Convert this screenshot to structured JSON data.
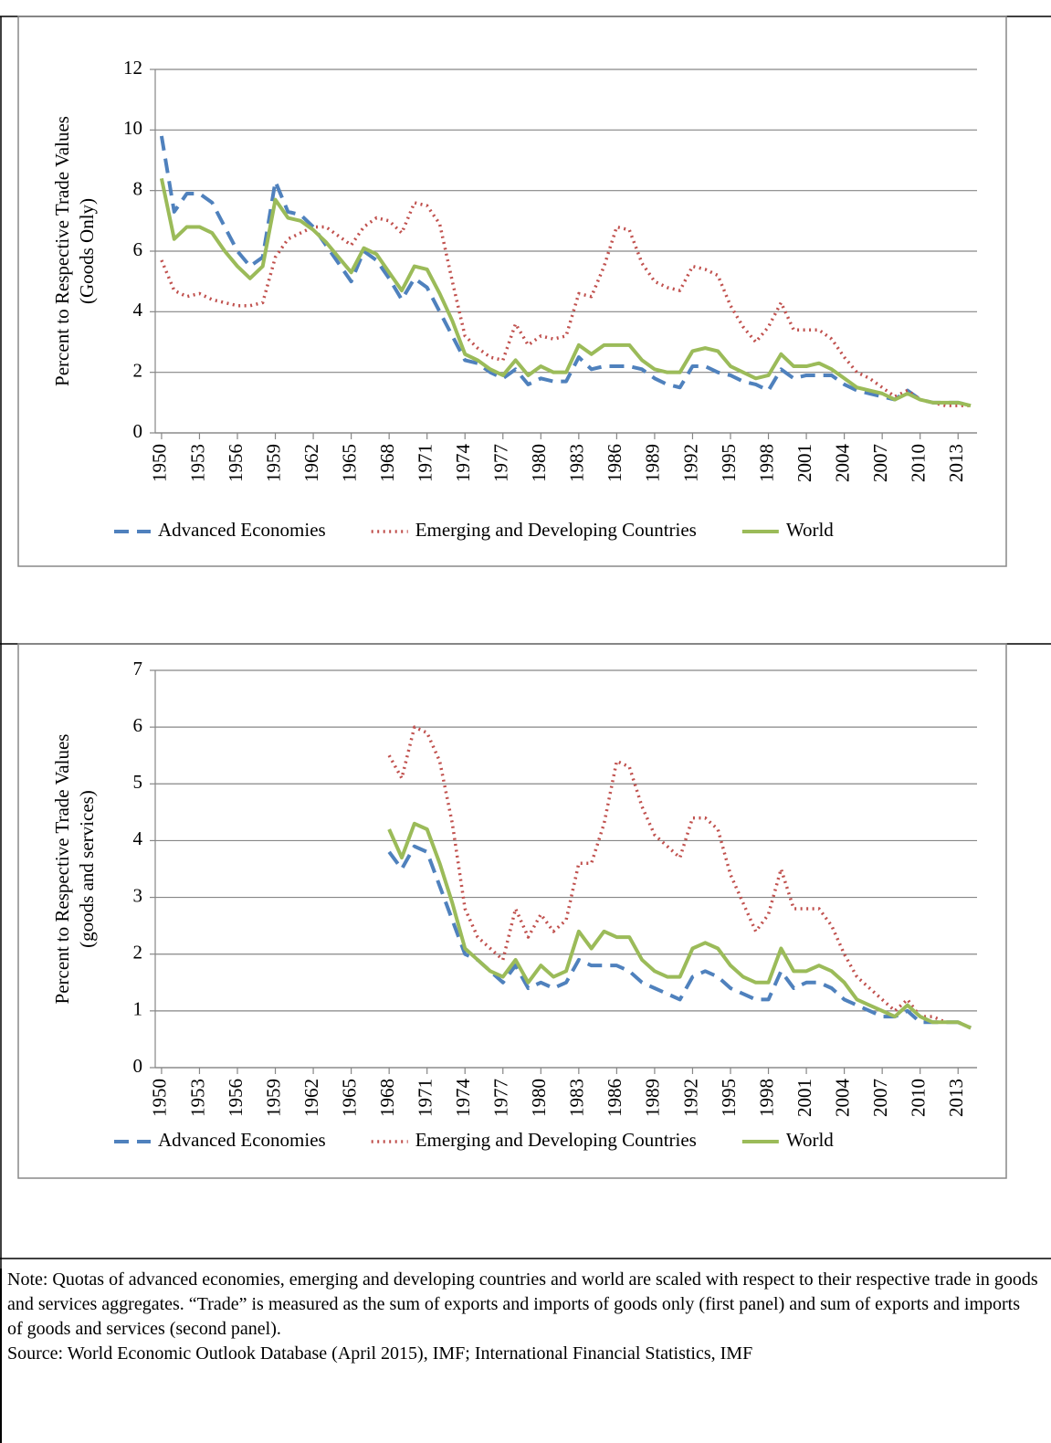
{
  "chart_data": [
    {
      "type": "line",
      "ylabel": [
        "Percent to Respective Trade Values",
        "(Goods Only)"
      ],
      "x": [
        1950,
        1951,
        1952,
        1953,
        1954,
        1955,
        1956,
        1957,
        1958,
        1959,
        1960,
        1961,
        1962,
        1963,
        1964,
        1965,
        1966,
        1967,
        1968,
        1969,
        1970,
        1971,
        1972,
        1973,
        1974,
        1975,
        1976,
        1977,
        1978,
        1979,
        1980,
        1981,
        1982,
        1983,
        1984,
        1985,
        1986,
        1987,
        1988,
        1989,
        1990,
        1991,
        1992,
        1993,
        1994,
        1995,
        1996,
        1997,
        1998,
        1999,
        2000,
        2001,
        2002,
        2003,
        2004,
        2005,
        2006,
        2007,
        2008,
        2009,
        2010,
        2011,
        2012,
        2013,
        2014
      ],
      "xlim": [
        1949.5,
        2014.5
      ],
      "xticks": [
        1950,
        1953,
        1956,
        1959,
        1962,
        1965,
        1968,
        1971,
        1974,
        1977,
        1980,
        1983,
        1986,
        1989,
        1992,
        1995,
        1998,
        2001,
        2004,
        2007,
        2010,
        2013
      ],
      "ylim": [
        0,
        12
      ],
      "yticks": [
        0,
        2,
        4,
        6,
        8,
        10,
        12
      ],
      "grid": true,
      "series": [
        {
          "name": "Advanced Economies",
          "color": "#4f81bd",
          "style": "dashed",
          "values": [
            9.8,
            7.3,
            7.9,
            7.9,
            7.6,
            6.8,
            6.0,
            5.5,
            5.8,
            8.3,
            7.3,
            7.2,
            6.8,
            6.2,
            5.6,
            5.0,
            6.0,
            5.7,
            5.1,
            4.4,
            5.1,
            4.8,
            4.0,
            3.2,
            2.4,
            2.3,
            2.0,
            1.8,
            2.1,
            1.6,
            1.8,
            1.7,
            1.7,
            2.5,
            2.1,
            2.2,
            2.2,
            2.2,
            2.1,
            1.8,
            1.6,
            1.5,
            2.2,
            2.2,
            2.0,
            1.9,
            1.7,
            1.6,
            1.4,
            2.1,
            1.8,
            1.9,
            1.9,
            1.9,
            1.6,
            1.4,
            1.3,
            1.2,
            1.1,
            1.4,
            1.1,
            1.0,
            1.0,
            1.0,
            0.9
          ]
        },
        {
          "name": "Emerging and Developing Countries",
          "color": "#c0504d",
          "style": "dotted",
          "values": [
            5.7,
            4.7,
            4.5,
            4.6,
            4.4,
            4.3,
            4.2,
            4.2,
            4.3,
            5.8,
            6.4,
            6.6,
            6.8,
            6.8,
            6.5,
            6.2,
            6.8,
            7.1,
            7.0,
            6.6,
            7.6,
            7.5,
            6.9,
            5.0,
            3.2,
            2.8,
            2.5,
            2.4,
            3.6,
            2.9,
            3.2,
            3.1,
            3.2,
            4.6,
            4.5,
            5.5,
            6.8,
            6.7,
            5.6,
            5.0,
            4.8,
            4.7,
            5.5,
            5.4,
            5.2,
            4.2,
            3.5,
            3.0,
            3.5,
            4.3,
            3.4,
            3.4,
            3.4,
            3.1,
            2.5,
            2.0,
            1.8,
            1.5,
            1.2,
            1.4,
            1.1,
            1.0,
            0.9,
            0.9,
            0.9
          ]
        },
        {
          "name": "World",
          "color": "#9bbb59",
          "style": "solid",
          "values": [
            8.4,
            6.4,
            6.8,
            6.8,
            6.6,
            6.0,
            5.5,
            5.1,
            5.5,
            7.7,
            7.1,
            7.0,
            6.7,
            6.3,
            5.8,
            5.3,
            6.1,
            5.9,
            5.3,
            4.7,
            5.5,
            5.4,
            4.6,
            3.7,
            2.6,
            2.4,
            2.1,
            1.9,
            2.4,
            1.9,
            2.2,
            2.0,
            2.0,
            2.9,
            2.6,
            2.9,
            2.9,
            2.9,
            2.4,
            2.1,
            2.0,
            2.0,
            2.7,
            2.8,
            2.7,
            2.2,
            2.0,
            1.8,
            1.9,
            2.6,
            2.2,
            2.2,
            2.3,
            2.1,
            1.8,
            1.5,
            1.4,
            1.3,
            1.1,
            1.3,
            1.1,
            1.0,
            1.0,
            1.0,
            0.9
          ]
        }
      ]
    },
    {
      "type": "line",
      "ylabel": [
        "Percent to Respective Trade Values",
        "(goods and services)"
      ],
      "x": [
        1950,
        1951,
        1952,
        1953,
        1954,
        1955,
        1956,
        1957,
        1958,
        1959,
        1960,
        1961,
        1962,
        1963,
        1964,
        1965,
        1966,
        1967,
        1968,
        1969,
        1970,
        1971,
        1972,
        1973,
        1974,
        1975,
        1976,
        1977,
        1978,
        1979,
        1980,
        1981,
        1982,
        1983,
        1984,
        1985,
        1986,
        1987,
        1988,
        1989,
        1990,
        1991,
        1992,
        1993,
        1994,
        1995,
        1996,
        1997,
        1998,
        1999,
        2000,
        2001,
        2002,
        2003,
        2004,
        2005,
        2006,
        2007,
        2008,
        2009,
        2010,
        2011,
        2012,
        2013,
        2014
      ],
      "xlim": [
        1949.5,
        2014.5
      ],
      "xticks": [
        1950,
        1953,
        1956,
        1959,
        1962,
        1965,
        1968,
        1971,
        1974,
        1977,
        1980,
        1983,
        1986,
        1989,
        1992,
        1995,
        1998,
        2001,
        2004,
        2007,
        2010,
        2013
      ],
      "ylim": [
        0,
        7
      ],
      "yticks": [
        0,
        1,
        2,
        3,
        4,
        5,
        6,
        7
      ],
      "grid": true,
      "series": [
        {
          "name": "Advanced Economies",
          "color": "#4f81bd",
          "style": "dashed",
          "values": [
            null,
            null,
            null,
            null,
            null,
            null,
            null,
            null,
            null,
            null,
            null,
            null,
            null,
            null,
            null,
            null,
            null,
            null,
            3.8,
            3.5,
            3.9,
            3.8,
            3.2,
            2.6,
            2.0,
            1.9,
            1.7,
            1.5,
            1.8,
            1.4,
            1.5,
            1.4,
            1.5,
            1.9,
            1.8,
            1.8,
            1.8,
            1.7,
            1.5,
            1.4,
            1.3,
            1.2,
            1.6,
            1.7,
            1.6,
            1.4,
            1.3,
            1.2,
            1.2,
            1.7,
            1.4,
            1.5,
            1.5,
            1.4,
            1.2,
            1.1,
            1.0,
            0.9,
            0.9,
            1.0,
            0.8,
            0.8,
            0.8,
            0.8,
            0.7
          ]
        },
        {
          "name": "Emerging and Developing Countries",
          "color": "#c0504d",
          "style": "dotted",
          "values": [
            null,
            null,
            null,
            null,
            null,
            null,
            null,
            null,
            null,
            null,
            null,
            null,
            null,
            null,
            null,
            null,
            null,
            null,
            5.5,
            5.1,
            6.0,
            5.9,
            5.4,
            4.3,
            2.8,
            2.3,
            2.1,
            1.9,
            2.8,
            2.3,
            2.7,
            2.4,
            2.6,
            3.6,
            3.6,
            4.3,
            5.4,
            5.3,
            4.6,
            4.1,
            3.9,
            3.7,
            4.4,
            4.4,
            4.2,
            3.4,
            2.9,
            2.4,
            2.7,
            3.5,
            2.8,
            2.8,
            2.8,
            2.5,
            2.0,
            1.6,
            1.4,
            1.2,
            1.0,
            1.2,
            0.9,
            0.9,
            0.8,
            0.8,
            0.7
          ]
        },
        {
          "name": "World",
          "color": "#9bbb59",
          "style": "solid",
          "values": [
            null,
            null,
            null,
            null,
            null,
            null,
            null,
            null,
            null,
            null,
            null,
            null,
            null,
            null,
            null,
            null,
            null,
            null,
            4.2,
            3.7,
            4.3,
            4.2,
            3.6,
            2.9,
            2.1,
            1.9,
            1.7,
            1.6,
            1.9,
            1.5,
            1.8,
            1.6,
            1.7,
            2.4,
            2.1,
            2.4,
            2.3,
            2.3,
            1.9,
            1.7,
            1.6,
            1.6,
            2.1,
            2.2,
            2.1,
            1.8,
            1.6,
            1.5,
            1.5,
            2.1,
            1.7,
            1.7,
            1.8,
            1.7,
            1.5,
            1.2,
            1.1,
            1.0,
            0.9,
            1.1,
            0.9,
            0.8,
            0.8,
            0.8,
            0.7
          ]
        }
      ]
    }
  ],
  "note": "Note: Quotas of advanced economies, emerging and developing countries and world are scaled with respect to their respective trade in goods and services aggregates. “Trade” is measured as the sum of exports and imports of goods only (first panel) and sum of exports and imports of goods and services (second panel).",
  "source": "Source: World Economic Outlook Database (April 2015), IMF; International Financial Statistics, IMF"
}
